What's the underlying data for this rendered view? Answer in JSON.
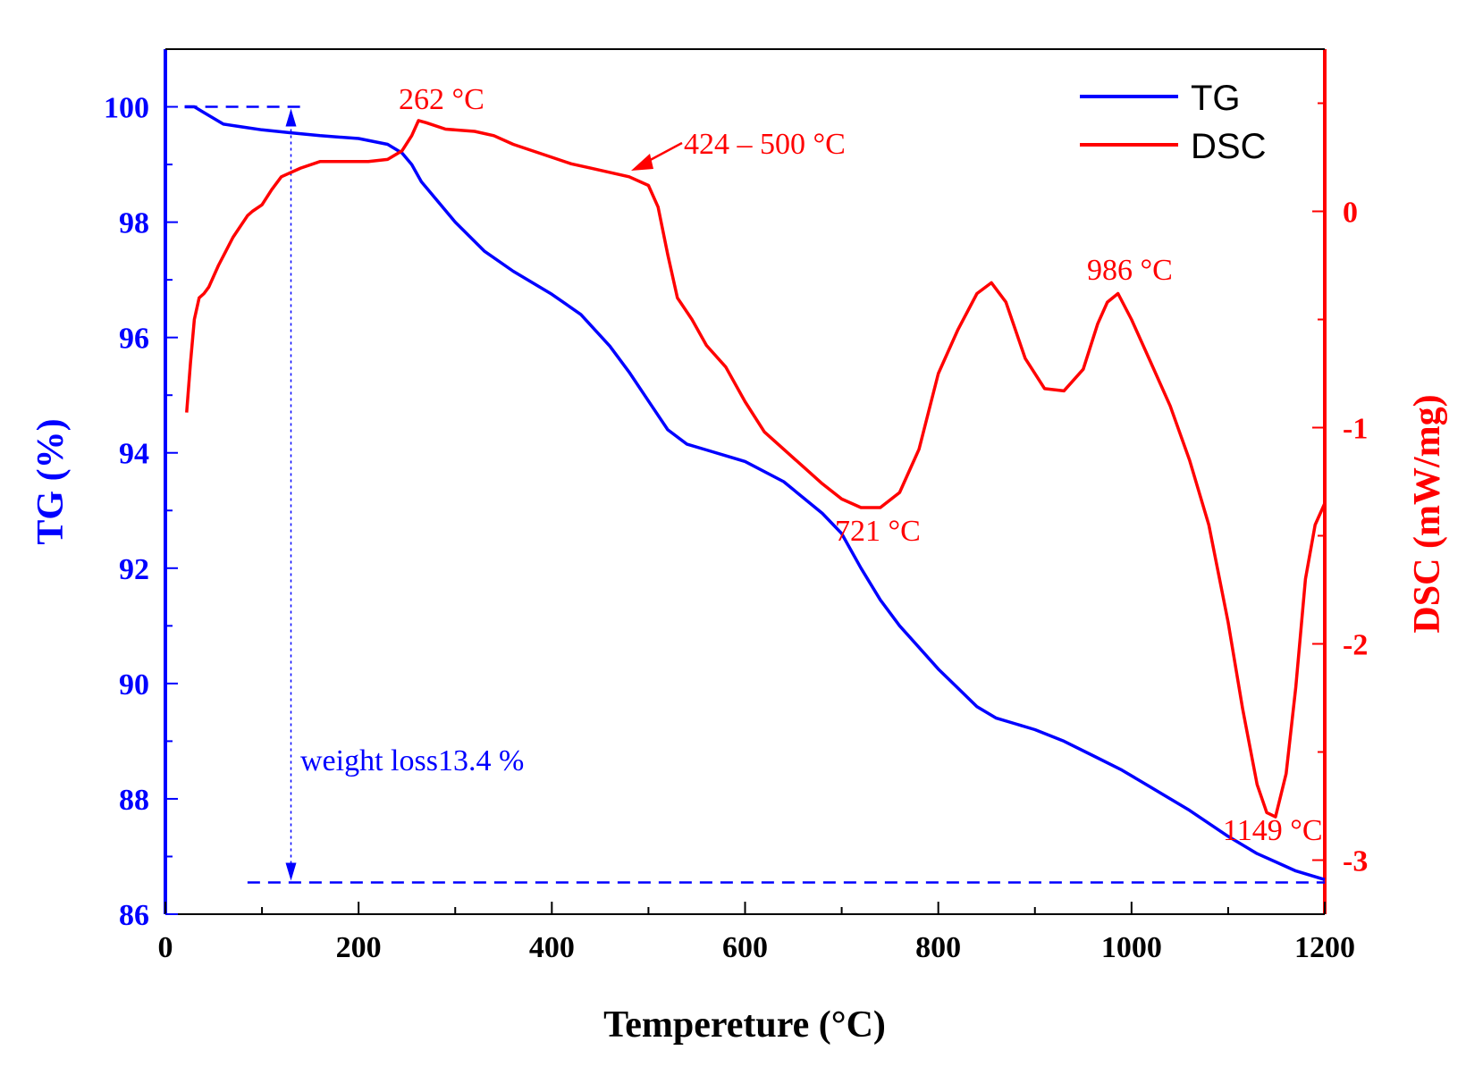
{
  "chart_data": {
    "type": "line",
    "title": "",
    "xlabel": "Tempereture (°C)",
    "ylabel_left": "TG (%)",
    "ylabel_right": "DSC (mW/mg)",
    "xlim": [
      0,
      1200
    ],
    "ylim_left": [
      86,
      101
    ],
    "ylim_right": [
      -3.25,
      0.75
    ],
    "x_ticks": [
      0,
      200,
      400,
      600,
      800,
      1000,
      1200
    ],
    "y_left_ticks": [
      86,
      88,
      90,
      92,
      94,
      96,
      98,
      100
    ],
    "y_right_ticks": [
      0,
      -1,
      -2,
      -3
    ],
    "y_right_tick_labels": [
      "0",
      "-1",
      "-2",
      "-3"
    ],
    "grid": false,
    "legend_position": "top-right",
    "colors": {
      "tg": "#0000ff",
      "dsc": "#ff0000",
      "axis": "#000000"
    },
    "series": [
      {
        "name": "TG",
        "axis": "left",
        "color": "#0000ff",
        "x": [
          20,
          30,
          40,
          60,
          80,
          100,
          130,
          160,
          200,
          230,
          245,
          255,
          265,
          275,
          300,
          330,
          360,
          400,
          430,
          460,
          480,
          500,
          520,
          540,
          560,
          600,
          640,
          680,
          700,
          720,
          740,
          760,
          800,
          840,
          860,
          880,
          900,
          930,
          960,
          990,
          1020,
          1060,
          1100,
          1130,
          1150,
          1170,
          1190,
          1200
        ],
        "values": [
          100.0,
          100.0,
          99.9,
          99.7,
          99.65,
          99.6,
          99.55,
          99.5,
          99.45,
          99.35,
          99.2,
          99.0,
          98.7,
          98.5,
          98.0,
          97.5,
          97.15,
          96.75,
          96.4,
          95.85,
          95.4,
          94.9,
          94.4,
          94.15,
          94.05,
          93.85,
          93.5,
          92.95,
          92.6,
          92.0,
          91.45,
          91.0,
          90.25,
          89.6,
          89.4,
          89.3,
          89.2,
          89.0,
          88.75,
          88.5,
          88.2,
          87.8,
          87.35,
          87.05,
          86.9,
          86.75,
          86.65,
          86.6
        ]
      },
      {
        "name": "DSC",
        "axis": "right",
        "color": "#ff0000",
        "x": [
          22,
          26,
          30,
          35,
          40,
          45,
          55,
          70,
          85,
          90,
          100,
          110,
          120,
          140,
          160,
          175,
          190,
          210,
          230,
          245,
          255,
          262,
          270,
          290,
          320,
          340,
          360,
          400,
          420,
          440,
          460,
          480,
          500,
          510,
          520,
          530,
          545,
          560,
          580,
          600,
          620,
          640,
          660,
          680,
          700,
          720,
          740,
          760,
          780,
          800,
          820,
          840,
          855,
          870,
          890,
          910,
          930,
          950,
          965,
          975,
          986,
          1000,
          1020,
          1040,
          1060,
          1080,
          1100,
          1115,
          1130,
          1140,
          1149,
          1160,
          1170,
          1180,
          1190,
          1200
        ],
        "values": [
          -0.93,
          -0.7,
          -0.5,
          -0.4,
          -0.38,
          -0.35,
          -0.25,
          -0.12,
          -0.02,
          0.0,
          0.03,
          0.1,
          0.16,
          0.2,
          0.23,
          0.23,
          0.23,
          0.23,
          0.24,
          0.28,
          0.35,
          0.42,
          0.41,
          0.38,
          0.37,
          0.35,
          0.31,
          0.25,
          0.22,
          0.2,
          0.18,
          0.16,
          0.12,
          0.02,
          -0.2,
          -0.4,
          -0.5,
          -0.62,
          -0.72,
          -0.88,
          -1.02,
          -1.1,
          -1.18,
          -1.26,
          -1.33,
          -1.37,
          -1.37,
          -1.3,
          -1.1,
          -0.75,
          -0.55,
          -0.38,
          -0.33,
          -0.42,
          -0.68,
          -0.82,
          -0.83,
          -0.73,
          -0.52,
          -0.42,
          -0.38,
          -0.5,
          -0.7,
          -0.9,
          -1.15,
          -1.45,
          -1.9,
          -2.3,
          -2.65,
          -2.78,
          -2.8,
          -2.6,
          -2.2,
          -1.7,
          -1.45,
          -1.35
        ]
      }
    ],
    "annotations": {
      "peak_262": "262 °C",
      "range_424_500": "424 – 500 °C",
      "valley_721": "721 °C",
      "peak_986": "986 °C",
      "valley_1149": "1149 °C",
      "weight_loss": "weight loss13.4 %"
    },
    "weight_loss_marker": {
      "x": 130,
      "tg_top": 100.0,
      "tg_bottom": 86.55
    }
  }
}
